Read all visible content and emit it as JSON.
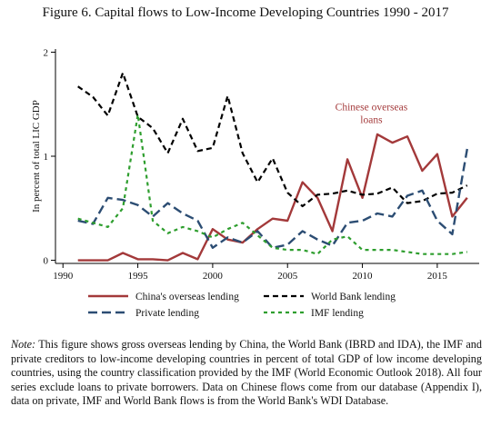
{
  "figure_title": "Figure 6. Capital flows to Low-Income Developing Countries 1990 - 2017",
  "note": {
    "label": "Note:",
    "text": " This figure shows gross overseas lending by China, the World Bank (IBRD and IDA), the IMF and private creditors to low-income developing countries in percent of total GDP of low income developing countries, using the country classification provided by the IMF (World Economic Outlook 2018). All four series exclude loans to private borrowers. Data on Chinese flows come from our database (Appendix I), data on private, IMF and World Bank flows is from the World Bank's WDI Database."
  },
  "chart_data": {
    "type": "line",
    "ylabel": "In percent of total LIC GDP",
    "xlabel": "",
    "xlim": [
      1989.5,
      2017.8
    ],
    "ylim": [
      -0.03,
      2.03
    ],
    "x_ticks": [
      1990,
      1995,
      2000,
      2005,
      2010,
      2015
    ],
    "y_ticks": [
      0,
      1,
      2
    ],
    "x": [
      1991,
      1992,
      1993,
      1994,
      1995,
      1996,
      1997,
      1998,
      1999,
      2000,
      2001,
      2002,
      2003,
      2004,
      2005,
      2006,
      2007,
      2008,
      2009,
      2010,
      2011,
      2012,
      2013,
      2014,
      2015,
      2016,
      2017
    ],
    "series": [
      {
        "name": "China's overseas lending",
        "color": "#a3393a",
        "dash": "",
        "width": 2.4,
        "values": [
          0.0,
          0.0,
          0.0,
          0.07,
          0.01,
          0.01,
          0.0,
          0.07,
          0.01,
          0.3,
          0.2,
          0.17,
          0.3,
          0.4,
          0.38,
          0.75,
          0.6,
          0.28,
          0.97,
          0.6,
          1.21,
          1.13,
          1.19,
          0.86,
          1.02,
          0.42,
          0.6
        ]
      },
      {
        "name": "World Bank lending",
        "color": "#000000",
        "dash": "6,4",
        "width": 2.2,
        "values": [
          1.67,
          1.57,
          1.39,
          1.8,
          1.38,
          1.27,
          1.03,
          1.36,
          1.05,
          1.08,
          1.58,
          1.03,
          0.75,
          0.98,
          0.65,
          0.52,
          0.63,
          0.64,
          0.67,
          0.63,
          0.64,
          0.7,
          0.55,
          0.57,
          0.64,
          0.65,
          0.72
        ]
      },
      {
        "name": "Private lending",
        "color": "#2c4d73",
        "dash": "10,5",
        "width": 2.4,
        "values": [
          0.38,
          0.35,
          0.6,
          0.58,
          0.53,
          0.42,
          0.55,
          0.45,
          0.38,
          0.12,
          0.22,
          0.17,
          0.28,
          0.12,
          0.15,
          0.28,
          0.2,
          0.14,
          0.36,
          0.38,
          0.45,
          0.42,
          0.62,
          0.67,
          0.38,
          0.25,
          1.07
        ]
      },
      {
        "name": "IMF lending",
        "color": "#2e9e2e",
        "dash": "4,4",
        "width": 2.2,
        "values": [
          0.4,
          0.36,
          0.32,
          0.5,
          1.4,
          0.38,
          0.26,
          0.32,
          0.28,
          0.22,
          0.3,
          0.36,
          0.24,
          0.12,
          0.1,
          0.1,
          0.06,
          0.2,
          0.23,
          0.1,
          0.1,
          0.1,
          0.08,
          0.06,
          0.06,
          0.06,
          0.08
        ]
      }
    ],
    "annotation": {
      "text": "Chinese overseas loans",
      "lines": [
        "Chinese overseas",
        "loans"
      ],
      "color": "#a3393a",
      "x": 2010.6,
      "y": 1.44
    },
    "legend_position": "bottom",
    "grid": false
  }
}
